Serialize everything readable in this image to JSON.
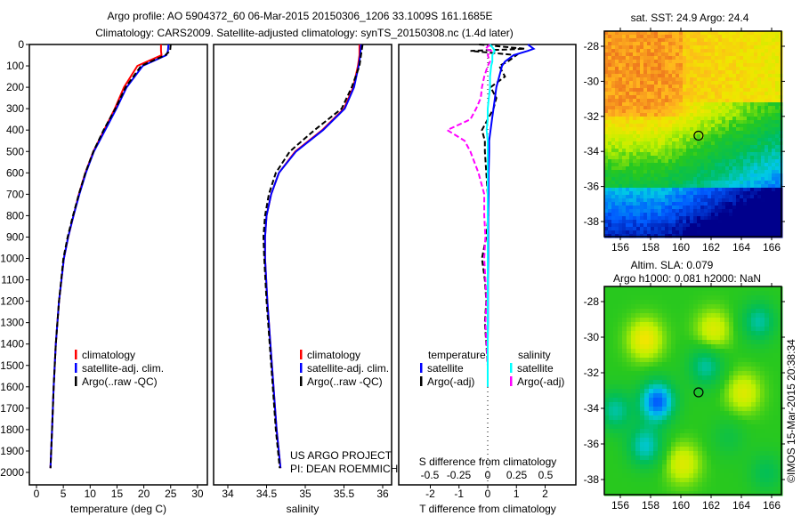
{
  "title": {
    "line1": "Argo profile: AO 5904372_60 06-Mar-2015 20150306_1206 33.1009S 161.1685E",
    "line2": "Climatology: CARS2009. Satellite-adjusted climatology: synTS_20150308.nc (1.4d later)"
  },
  "credit": "©IMOS 15-Mar-2015 20:38:34",
  "project": {
    "line1": "US ARGO PROJECT",
    "line2": "PI: DEAN ROEMMICH"
  },
  "colors": {
    "climatology": "#ff0000",
    "satellite": "#0000ff",
    "argo": "#000000",
    "sal_satellite": "#00ffff",
    "sal_argo": "#ff00ff"
  },
  "chart_data": [
    {
      "type": "line",
      "id": "temperature",
      "xlabel": "temperature (deg C)",
      "ylabel": "",
      "xlim": [
        -2,
        31
      ],
      "ylim": [
        2080,
        0
      ],
      "xticks": [
        0,
        5,
        10,
        15,
        20,
        25,
        30
      ],
      "yticks": [
        0,
        100,
        200,
        300,
        400,
        500,
        600,
        700,
        800,
        900,
        1000,
        1100,
        1200,
        1300,
        1400,
        1500,
        1600,
        1700,
        1800,
        1900,
        2000
      ],
      "legend": [
        "climatology",
        "satellite-adj. clim.",
        "Argo(..raw -QC)"
      ],
      "depth": [
        0,
        30,
        50,
        100,
        200,
        300,
        400,
        500,
        600,
        700,
        800,
        900,
        1000,
        1200,
        1400,
        1600,
        1800,
        1980
      ],
      "series": [
        {
          "name": "climatology",
          "values": [
            23.2,
            23.2,
            23.3,
            18.8,
            16.3,
            14.6,
            12.6,
            10.6,
            9.1,
            7.9,
            6.9,
            5.9,
            5.1,
            4.2,
            3.6,
            3.2,
            2.9,
            2.6
          ]
        },
        {
          "name": "satellite-adj. clim.",
          "values": [
            24.6,
            24.5,
            24.2,
            19.8,
            16.8,
            14.9,
            12.8,
            10.7,
            9.2,
            8.0,
            6.9,
            5.9,
            5.1,
            4.2,
            3.6,
            3.2,
            2.9,
            2.6
          ]
        },
        {
          "name": "Argo(..raw -QC)",
          "values": [
            25.0,
            24.9,
            24.0,
            19.5,
            16.6,
            14.7,
            12.5,
            10.6,
            9.1,
            7.9,
            6.8,
            5.8,
            5.0,
            4.2,
            3.6,
            3.2,
            2.9,
            2.6
          ]
        }
      ]
    },
    {
      "type": "line",
      "id": "salinity",
      "xlabel": "salinity",
      "xlim": [
        33.85,
        36.1
      ],
      "ylim": [
        2080,
        0
      ],
      "xticks": [
        34,
        34.5,
        35,
        35.5,
        36
      ],
      "legend": [
        "climatology",
        "satellite-adj. clim.",
        "Argo(..raw -QC)"
      ],
      "depth": [
        0,
        50,
        100,
        200,
        300,
        400,
        500,
        600,
        700,
        800,
        900,
        1000,
        1200,
        1400,
        1600,
        1800,
        1980
      ],
      "series": [
        {
          "name": "climatology",
          "values": [
            35.7,
            35.7,
            35.68,
            35.62,
            35.5,
            35.22,
            34.87,
            34.66,
            34.56,
            34.5,
            34.48,
            34.48,
            34.51,
            34.55,
            34.59,
            34.63,
            34.68
          ]
        },
        {
          "name": "satellite-adj. clim.",
          "values": [
            35.72,
            35.71,
            35.69,
            35.63,
            35.51,
            35.23,
            34.88,
            34.66,
            34.56,
            34.5,
            34.48,
            34.48,
            34.51,
            34.55,
            34.59,
            34.63,
            34.68
          ]
        },
        {
          "name": "Argo(..raw -QC)",
          "values": [
            35.74,
            35.72,
            35.7,
            35.6,
            35.47,
            35.12,
            34.8,
            34.62,
            34.53,
            34.48,
            34.46,
            34.47,
            34.5,
            34.54,
            34.58,
            34.62,
            34.67
          ]
        }
      ]
    },
    {
      "type": "line",
      "id": "difference",
      "xlabel": "T difference from climatology",
      "xlabel2": "S difference from climatology",
      "xlim": [
        -3,
        3
      ],
      "ylim": [
        2080,
        0
      ],
      "xticks": [
        -2,
        -1,
        0,
        1,
        2
      ],
      "xticks2": [
        -0.5,
        -0.25,
        0,
        0.25,
        0.5
      ],
      "legend_titles": [
        "temperature",
        "salinity"
      ],
      "legend": [
        "satellite",
        "Argo(-adj)",
        "satellite",
        "Argo(-adj)"
      ],
      "depth": [
        0,
        20,
        30,
        50,
        80,
        100,
        150,
        200,
        250,
        300,
        350,
        400,
        450,
        500,
        600,
        700,
        800,
        900,
        1000,
        1100,
        1200,
        1300,
        1400,
        1500,
        1600
      ],
      "series": [
        {
          "name": "T satellite",
          "values": [
            1.4,
            1.6,
            1.4,
            0.9,
            0.6,
            0.5,
            0.4,
            0.3,
            0.25,
            0.2,
            0.15,
            0.1,
            0.05,
            0.05,
            0.03,
            0.03,
            0.02,
            0.02,
            0.02,
            0.01,
            0.01,
            0.01,
            0.0,
            0.0,
            0.0
          ]
        },
        {
          "name": "T Argo",
          "values": [
            -0.3,
            1.3,
            -0.6,
            1.0,
            0.7,
            0.4,
            0.6,
            0.1,
            0.3,
            0.2,
            0.0,
            -0.2,
            -0.1,
            -0.1,
            -0.05,
            0.0,
            0.02,
            -0.05,
            -0.2,
            -0.1,
            -0.05,
            -0.1,
            -0.05,
            0.0,
            0.0
          ]
        },
        {
          "name": "S satellite",
          "values": [
            0.02,
            0.05,
            0.06,
            0.04,
            0.04,
            0.03,
            0.02,
            0.02,
            0.01,
            0.0,
            0.0,
            -0.01,
            0.0,
            0.0,
            0.0,
            0.0,
            0.0,
            0.0,
            0.0,
            0.0,
            0.0,
            0.0,
            0.0,
            0.0,
            0.0
          ]
        },
        {
          "name": "S Argo",
          "values": [
            0.02,
            -0.02,
            0.03,
            0.0,
            0.02,
            0.0,
            -0.03,
            -0.05,
            -0.06,
            -0.1,
            -0.15,
            -0.35,
            -0.2,
            -0.15,
            -0.08,
            -0.03,
            -0.03,
            -0.02,
            -0.03,
            -0.02,
            -0.01,
            -0.02,
            -0.01,
            0.0,
            0.0
          ]
        }
      ]
    },
    {
      "type": "heatmap",
      "id": "sst-map",
      "title": "sat. SST: 24.9 Argo: 24.4",
      "xlim": [
        155,
        167.3
      ],
      "ylim": [
        -39.1,
        -27.2
      ],
      "xticks": [
        156,
        158,
        160,
        162,
        164,
        166
      ],
      "yticks": [
        -28,
        -30,
        -32,
        -34,
        -36,
        -38
      ],
      "marker": {
        "lon": 161.17,
        "lat": -33.1
      }
    },
    {
      "type": "heatmap",
      "id": "sla-map",
      "title": "Altim. SLA: 0.079",
      "subtitle": "Argo h1000: 0.081 h2000: NaN",
      "xlim": [
        155,
        167.3
      ],
      "ylim": [
        -39.1,
        -27.2
      ],
      "xticks": [
        156,
        158,
        160,
        162,
        164,
        166
      ],
      "yticks": [
        -28,
        -30,
        -32,
        -34,
        -36,
        -38
      ],
      "marker": {
        "lon": 161.17,
        "lat": -33.1
      }
    }
  ]
}
